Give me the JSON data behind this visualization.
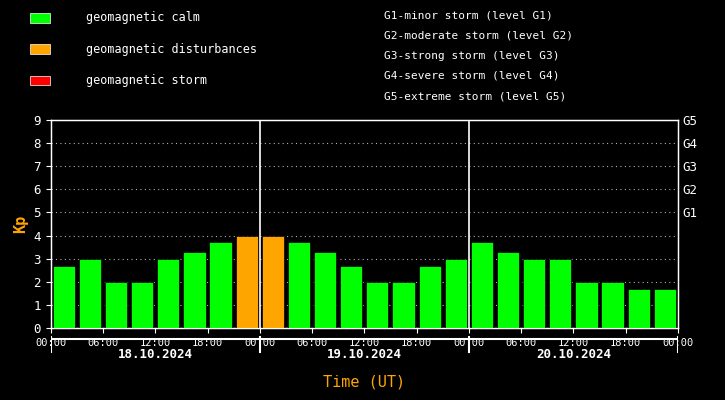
{
  "background_color": "#000000",
  "plot_bg_color": "#000000",
  "text_color": "#ffffff",
  "xlabel_color": "#ffa500",
  "ylabel_color": "#ffa500",
  "grid_color": "#ffffff",
  "bar_edge_color": "#000000",
  "color_calm": "#00ff00",
  "color_disturbance": "#ffa500",
  "color_storm": "#ff0000",
  "kp_values": [
    2.7,
    3.0,
    2.0,
    2.0,
    3.0,
    3.3,
    3.7,
    4.0,
    4.0,
    3.7,
    3.3,
    2.7,
    2.0,
    2.0,
    2.7,
    3.0,
    3.7,
    3.3,
    3.0,
    3.0,
    2.0,
    2.0,
    1.7,
    1.7
  ],
  "xlabel": "Time (UT)",
  "ylabel": "Kp",
  "ylim": [
    0,
    9
  ],
  "yticks": [
    0,
    1,
    2,
    3,
    4,
    5,
    6,
    7,
    8,
    9
  ],
  "day_labels": [
    "18.10.2024",
    "19.10.2024",
    "20.10.2024"
  ],
  "tick_labels": [
    "00:00",
    "06:00",
    "12:00",
    "18:00",
    "00:00",
    "06:00",
    "12:00",
    "18:00",
    "00:00",
    "06:00",
    "12:00",
    "18:00",
    "00:00"
  ],
  "right_axis_labels": [
    "G1",
    "G2",
    "G3",
    "G4",
    "G5"
  ],
  "right_axis_positions": [
    5,
    6,
    7,
    8,
    9
  ],
  "legend_items": [
    {
      "label": "geomagnetic calm",
      "color": "#00ff00"
    },
    {
      "label": "geomagnetic disturbances",
      "color": "#ffa500"
    },
    {
      "label": "geomagnetic storm",
      "color": "#ff0000"
    }
  ],
  "right_legend_lines": [
    "G1-minor storm (level G1)",
    "G2-moderate storm (level G2)",
    "G3-strong storm (level G3)",
    "G4-severe storm (level G4)",
    "G5-extreme storm (level G5)"
  ],
  "dividers": [
    8,
    16
  ],
  "fontname": "monospace",
  "bar_width": 0.85
}
